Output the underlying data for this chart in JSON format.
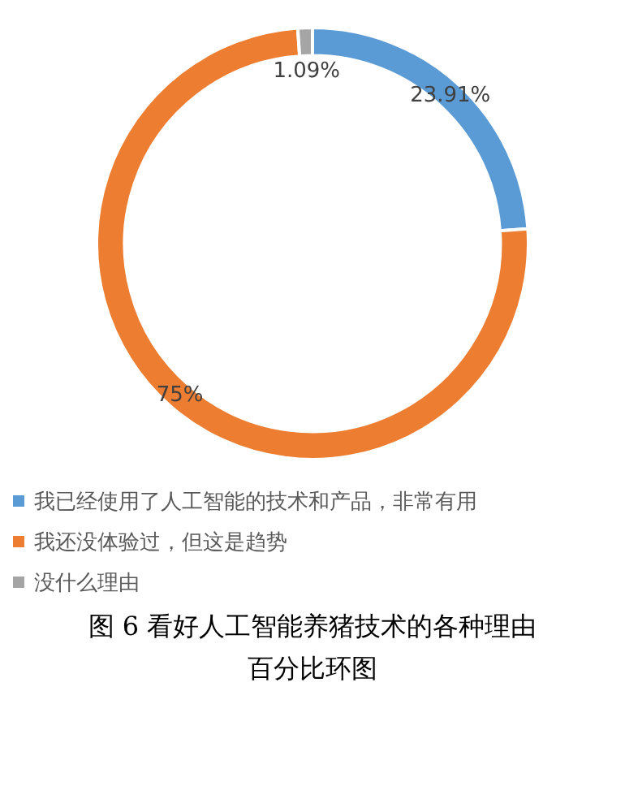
{
  "chart_data": {
    "type": "donut",
    "title": "图 6 看好人工智能养猪技术的各种理由百分比环图",
    "categories": [
      "我已经使用了人工智能的技术和产品，非常有用",
      "我还没体验过，但这是趋势",
      "没什么理由"
    ],
    "values": [
      23.91,
      75,
      1.09
    ],
    "value_labels": [
      "23.91%",
      "75%",
      "1.09%"
    ],
    "colors": [
      "#5b9bd5",
      "#ed7d31",
      "#a5a5a5"
    ],
    "legend": "bottom"
  }
}
